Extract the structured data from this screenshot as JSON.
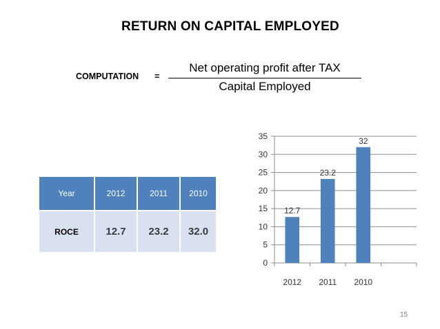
{
  "slide": {
    "title": "RETURN ON CAPITAL EMPLOYED",
    "page_number": "15"
  },
  "formula": {
    "label": "COMPUTATION",
    "equals": "=",
    "numerator": "Net operating profit after TAX",
    "denominator": "Capital Employed"
  },
  "table": {
    "header": [
      "Year",
      "2012",
      "2011",
      "2010"
    ],
    "row": [
      "ROCE",
      "12.7",
      "23.2",
      "32.0"
    ],
    "colors": {
      "header_bg": "#4f81bd",
      "cell_bg": "#d9e1f1"
    }
  },
  "chart_data": {
    "type": "bar",
    "categories": [
      "2012",
      "2011",
      "2010",
      ""
    ],
    "values": [
      12.7,
      23.2,
      32,
      null
    ],
    "data_labels": [
      "12.7",
      "23.2",
      "32",
      ""
    ],
    "yticks": [
      "0",
      "5",
      "10",
      "15",
      "20",
      "25",
      "30",
      "35"
    ],
    "ylim": [
      0,
      35
    ],
    "grid": true,
    "legend": "none",
    "bar_color": "#4f81bd"
  }
}
